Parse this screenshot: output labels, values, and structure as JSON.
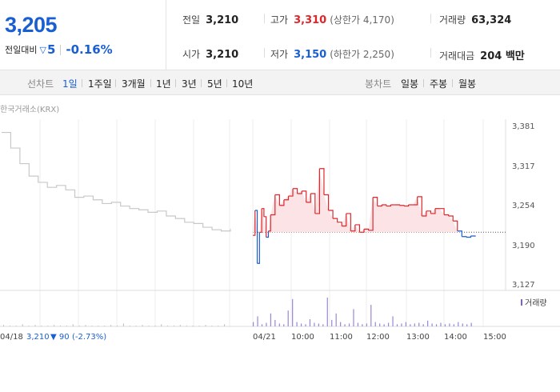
{
  "quote": {
    "price": "3,205",
    "change_label": "전일대비",
    "change_value": "5",
    "change_pct": "-0.16%",
    "stats": {
      "prev_close_label": "전일",
      "prev_close": "3,210",
      "high_label": "고가",
      "high": "3,310",
      "upper_limit": "(상한가 4,170)",
      "volume_label": "거래량",
      "volume": "63,324",
      "open_label": "시가",
      "open": "3,210",
      "low_label": "저가",
      "low": "3,150",
      "lower_limit": "(하한가 2,250)",
      "trade_value_label": "거래대금",
      "trade_value": "204 백만"
    }
  },
  "tabs": {
    "line_label": "선차트",
    "line_items": [
      "1일",
      "1주일",
      "3개월",
      "1년",
      "3년",
      "5년",
      "10년"
    ],
    "candle_label": "봉차트",
    "candle_items": [
      "일봉",
      "주봉",
      "월봉"
    ]
  },
  "colors": {
    "up": "#e0262a",
    "down": "#1a5fd1",
    "flat": "#c8c8c8",
    "up_fill": "#fbe3e6",
    "accent": "#1a5fd1"
  },
  "chart_data": {
    "type": "line",
    "source": "한국거래소(KRX)",
    "y_ticks": [
      "3,381",
      "3,317",
      "3,254",
      "3,190",
      "3,127"
    ],
    "ylim": [
      3127,
      3381
    ],
    "x_ticks": [
      "04/18",
      "04/21",
      "10:00",
      "11:00",
      "12:00",
      "13:00",
      "14:00",
      "15:00"
    ],
    "baseline": 3210,
    "prev_day": {
      "x": [
        0,
        2,
        4,
        6,
        8,
        10,
        12,
        14,
        16,
        18,
        20,
        22,
        24,
        26,
        28,
        30,
        32,
        34,
        36,
        38,
        40,
        42,
        44,
        46,
        48,
        50
      ],
      "y": [
        3370,
        3345,
        3320,
        3300,
        3290,
        3282,
        3285,
        3278,
        3266,
        3268,
        3262,
        3256,
        3258,
        3252,
        3248,
        3246,
        3242,
        3244,
        3236,
        3232,
        3226,
        3224,
        3218,
        3214,
        3212,
        3215
      ]
    },
    "today": {
      "x": [
        0,
        0.5,
        1,
        1.5,
        2,
        2.5,
        3,
        3.5,
        4,
        5,
        6,
        7,
        8,
        9,
        10,
        11,
        12,
        13,
        14,
        15,
        16,
        17,
        18,
        19,
        20,
        21,
        22,
        23,
        24,
        25,
        26,
        27,
        28,
        29,
        30,
        31,
        32,
        33,
        34,
        35,
        36,
        37,
        38,
        39,
        40,
        41,
        42,
        43,
        44,
        45,
        46,
        47,
        48,
        49,
        50
      ],
      "y": [
        3205,
        3245,
        3160,
        3210,
        3248,
        3235,
        3202,
        3212,
        3238,
        3270,
        3253,
        3262,
        3268,
        3280,
        3272,
        3276,
        3258,
        3272,
        3240,
        3312,
        3270,
        3245,
        3232,
        3226,
        3220,
        3240,
        3212,
        3222,
        3210,
        3215,
        3213,
        3266,
        3252,
        3254,
        3252,
        3254,
        3254,
        3253,
        3252,
        3254,
        3254,
        3267,
        3236,
        3244,
        3240,
        3248,
        3248,
        3238,
        3236,
        3228,
        3212,
        3203,
        3202,
        3204,
        3203
      ]
    },
    "prev_day_summary": {
      "date": "04/18",
      "close": "3,210",
      "change": "▼ 90",
      "change_pct": "(-2.73%)"
    },
    "volume_legend": "거래량",
    "volume": {
      "prev_day": [
        2,
        1,
        1,
        3,
        1,
        2,
        1,
        1,
        2,
        1,
        1,
        3,
        1,
        2,
        1,
        1,
        1,
        2,
        1,
        4,
        1,
        1,
        2,
        1,
        1,
        3,
        1,
        1,
        2,
        1,
        1,
        1,
        2,
        1,
        1,
        3
      ],
      "today": [
        6,
        14,
        3,
        5,
        18,
        9,
        4,
        3,
        22,
        38,
        6,
        4,
        3,
        10,
        5,
        4,
        3,
        40,
        9,
        18,
        6,
        3,
        4,
        24,
        5,
        3,
        4,
        30,
        6,
        4,
        3,
        5,
        14,
        3,
        4,
        6,
        3,
        4,
        5,
        3,
        8,
        4,
        3,
        5,
        3,
        4,
        3,
        6,
        4,
        3,
        5
      ]
    }
  }
}
